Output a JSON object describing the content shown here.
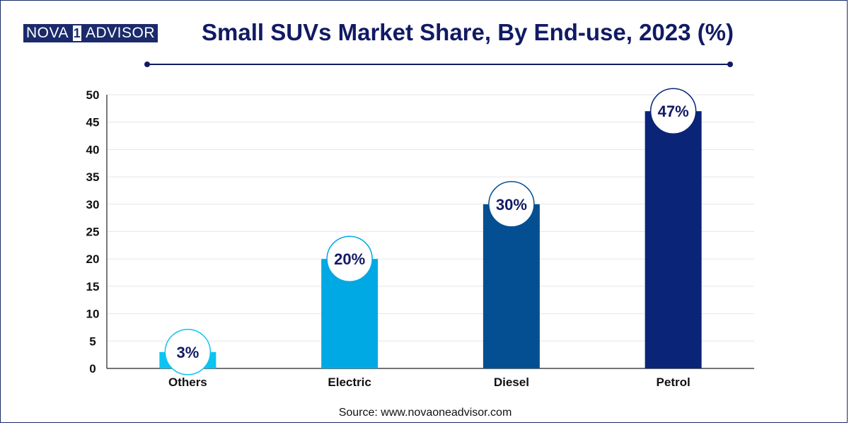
{
  "brand": {
    "part1": "NOVA",
    "part2": "1",
    "part3": "ADVISOR"
  },
  "title": "Small SUVs Market Share, By End-use, 2023 (%)",
  "source": "Source: www.novaoneadvisor.com",
  "colors": {
    "title": "#111a63",
    "grid": "#e6e6e6",
    "axis": "#222222"
  },
  "chart_data": {
    "type": "bar",
    "title": "Small SUVs Market Share, By End-use, 2023 (%)",
    "xlabel": "",
    "ylabel": "",
    "categories": [
      "Others",
      "Electric",
      "Diesel",
      "Petrol"
    ],
    "values": [
      3,
      20,
      30,
      47
    ],
    "value_labels": [
      "3%",
      "20%",
      "30%",
      "47%"
    ],
    "bar_colors": [
      "#0bc4f2",
      "#00a9e3",
      "#044f91",
      "#0a2478"
    ],
    "ylim": [
      0,
      50
    ],
    "yticks": [
      0,
      5,
      10,
      15,
      20,
      25,
      30,
      35,
      40,
      45,
      50
    ],
    "grid": true,
    "legend": "none"
  }
}
